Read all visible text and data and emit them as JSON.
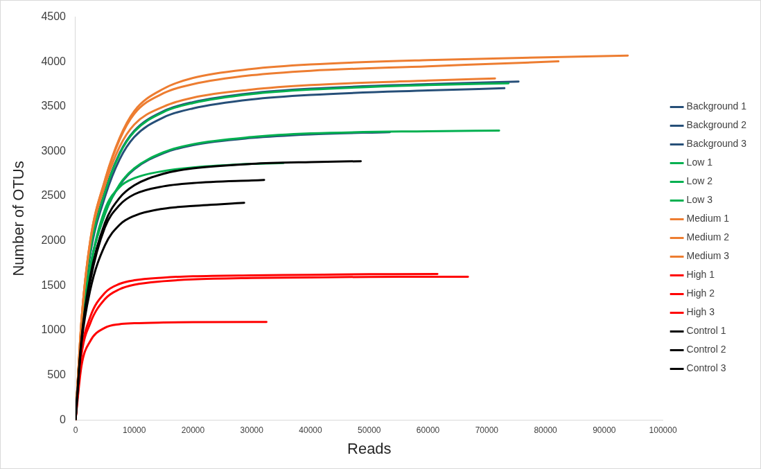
{
  "chart_data": {
    "type": "line",
    "xlabel": "Reads",
    "ylabel": "Number of OTUs",
    "xlim": [
      0,
      100000
    ],
    "xticks": [
      0,
      10000,
      20000,
      30000,
      40000,
      50000,
      60000,
      70000,
      80000,
      90000,
      100000
    ],
    "ylim": [
      0,
      4500
    ],
    "yticks": [
      0,
      500,
      1000,
      1500,
      2000,
      2500,
      3000,
      3500,
      4000,
      4500
    ],
    "grid": false,
    "legend": "right",
    "marker": "none",
    "line_style": "solid",
    "series": [
      {
        "name": "Background 1",
        "color": "#264f78",
        "x": [
          0,
          1000,
          2500,
          5000,
          7500,
          10000,
          15000,
          20000,
          30000,
          40000,
          60000,
          75400
        ],
        "values": [
          0,
          1050,
          1900,
          2550,
          2980,
          3230,
          3450,
          3550,
          3650,
          3700,
          3750,
          3780
        ]
      },
      {
        "name": "Background 2",
        "color": "#264f78",
        "x": [
          0,
          1000,
          2500,
          5000,
          7500,
          10000,
          15000,
          20000,
          30000,
          40000,
          53500
        ],
        "values": [
          0,
          950,
          1700,
          2300,
          2620,
          2800,
          2980,
          3070,
          3150,
          3190,
          3215
        ]
      },
      {
        "name": "Background 3",
        "color": "#264f78",
        "x": [
          0,
          1000,
          2500,
          5000,
          7500,
          10000,
          15000,
          20000,
          30000,
          40000,
          60000,
          73000
        ],
        "values": [
          0,
          1030,
          1850,
          2490,
          2910,
          3160,
          3380,
          3480,
          3580,
          3630,
          3680,
          3705
        ]
      },
      {
        "name": "Low 1",
        "color": "#00b050",
        "x": [
          0,
          1000,
          2500,
          5000,
          7500,
          10000,
          15000,
          20000,
          30000,
          40000,
          60000,
          73700
        ],
        "values": [
          0,
          1050,
          1890,
          2540,
          2970,
          3220,
          3440,
          3540,
          3640,
          3690,
          3740,
          3760
        ]
      },
      {
        "name": "Low 2",
        "color": "#00b050",
        "x": [
          0,
          1000,
          2500,
          5000,
          7500,
          10000,
          15000,
          20000,
          30000,
          40000,
          60000,
          72100
        ],
        "values": [
          0,
          950,
          1700,
          2300,
          2630,
          2810,
          2990,
          3080,
          3160,
          3200,
          3225,
          3232
        ]
      },
      {
        "name": "Low 3",
        "color": "#00b050",
        "x": [
          0,
          1000,
          2500,
          5000,
          7500,
          10000,
          15000,
          20000,
          30000,
          35400
        ],
        "values": [
          0,
          950,
          1700,
          2350,
          2600,
          2700,
          2780,
          2820,
          2860,
          2870
        ]
      },
      {
        "name": "Medium 1",
        "color": "#ed7d31",
        "x": [
          0,
          1000,
          2500,
          5000,
          7500,
          10000,
          15000,
          20000,
          30000,
          40000,
          60000,
          80000,
          94000
        ],
        "values": [
          0,
          1100,
          2000,
          2680,
          3150,
          3450,
          3700,
          3820,
          3920,
          3970,
          4020,
          4050,
          4070
        ]
      },
      {
        "name": "Medium 2",
        "color": "#ed7d31",
        "x": [
          0,
          1000,
          2500,
          5000,
          7500,
          10000,
          15000,
          20000,
          30000,
          40000,
          60000,
          82200
        ],
        "values": [
          0,
          1100,
          2000,
          2670,
          3130,
          3420,
          3650,
          3750,
          3850,
          3900,
          3950,
          4005
        ]
      },
      {
        "name": "Medium 3",
        "color": "#ed7d31",
        "x": [
          0,
          1000,
          2500,
          5000,
          7500,
          10000,
          15000,
          20000,
          30000,
          40000,
          60000,
          71400
        ],
        "values": [
          0,
          1100,
          1980,
          2620,
          3050,
          3300,
          3500,
          3600,
          3690,
          3740,
          3790,
          3815
        ]
      },
      {
        "name": "High 1",
        "color": "#ff0000",
        "x": [
          0,
          1000,
          2500,
          5000,
          7500,
          10000,
          15000,
          20000,
          30000,
          40000,
          50000,
          61600
        ],
        "values": [
          0,
          750,
          1150,
          1420,
          1520,
          1560,
          1590,
          1605,
          1615,
          1620,
          1628,
          1630
        ]
      },
      {
        "name": "High 2",
        "color": "#ff0000",
        "x": [
          0,
          1000,
          2500,
          5000,
          7500,
          10000,
          15000,
          20000,
          30000,
          40000,
          50000,
          66800
        ],
        "values": [
          0,
          720,
          1080,
          1350,
          1460,
          1510,
          1550,
          1570,
          1585,
          1592,
          1598,
          1600
        ]
      },
      {
        "name": "High 3",
        "color": "#ff0000",
        "x": [
          0,
          1000,
          2500,
          5000,
          7500,
          10000,
          15000,
          20000,
          32500
        ],
        "values": [
          0,
          600,
          880,
          1030,
          1070,
          1080,
          1088,
          1092,
          1095
        ]
      },
      {
        "name": "Control 1",
        "color": "#000000",
        "x": [
          0,
          1000,
          2500,
          5000,
          7500,
          10000,
          15000,
          20000,
          30000,
          40000,
          48550
        ],
        "values": [
          0,
          900,
          1600,
          2200,
          2480,
          2620,
          2750,
          2810,
          2860,
          2880,
          2890
        ]
      },
      {
        "name": "Control 2",
        "color": "#000000",
        "x": [
          0,
          1000,
          2500,
          5000,
          7500,
          10000,
          15000,
          20000,
          30000,
          32100
        ],
        "values": [
          0,
          880,
          1550,
          2150,
          2400,
          2520,
          2610,
          2645,
          2675,
          2680
        ]
      },
      {
        "name": "Control 3",
        "color": "#000000",
        "x": [
          0,
          1000,
          2500,
          5000,
          7500,
          10000,
          15000,
          20000,
          28700
        ],
        "values": [
          0,
          850,
          1450,
          1950,
          2180,
          2280,
          2360,
          2390,
          2425
        ]
      }
    ]
  }
}
